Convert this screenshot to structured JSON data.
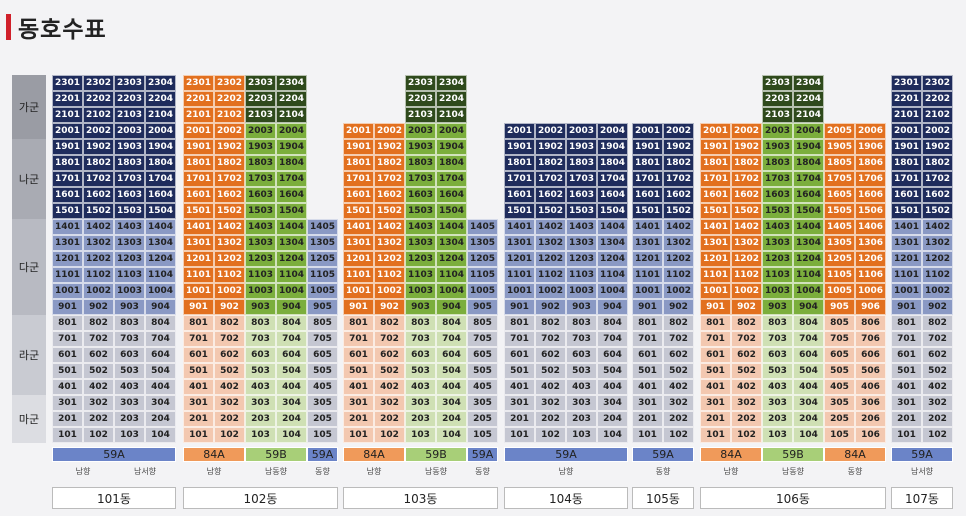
{
  "page_title": "동호수표",
  "groups": [
    "가군",
    "나군",
    "다군",
    "라군",
    "마군"
  ],
  "colors": {
    "navy": "#1f2c5c",
    "dark_green": "#2f4a1c",
    "orange": "#e2701f",
    "green": "#7bae3c",
    "blue_gray": "#8a99c4",
    "light_gray": "#c5c7d2",
    "peach": "#f3c8b0",
    "pale_green": "#cfe0b4",
    "blue_label": "#6b84c8",
    "orange_label": "#f09a5a",
    "green_label": "#a8cf78"
  },
  "buildings": [
    {
      "name": "101동",
      "types": [
        {
          "label": "59A",
          "cols": 4,
          "color": "#6b84c8"
        }
      ],
      "directions": [
        {
          "label": "남향",
          "cols": 2
        },
        {
          "label": "남서향",
          "cols": 2
        }
      ]
    },
    {
      "name": "102동",
      "types": [
        {
          "label": "84A",
          "cols": 2,
          "color": "#f09a5a"
        },
        {
          "label": "59B",
          "cols": 2,
          "color": "#a8cf78"
        },
        {
          "label": "59A",
          "cols": 1,
          "color": "#6b84c8"
        }
      ],
      "directions": [
        {
          "label": "남향",
          "cols": 2
        },
        {
          "label": "남동향",
          "cols": 2
        },
        {
          "label": "동향",
          "cols": 1
        }
      ]
    },
    {
      "name": "103동",
      "types": [
        {
          "label": "84A",
          "cols": 2,
          "color": "#f09a5a"
        },
        {
          "label": "59B",
          "cols": 2,
          "color": "#a8cf78"
        },
        {
          "label": "59A",
          "cols": 1,
          "color": "#6b84c8"
        }
      ],
      "directions": [
        {
          "label": "남향",
          "cols": 2
        },
        {
          "label": "남동향",
          "cols": 2
        },
        {
          "label": "동향",
          "cols": 1
        }
      ]
    },
    {
      "name": "104동",
      "types": [
        {
          "label": "59A",
          "cols": 4,
          "color": "#6b84c8"
        }
      ],
      "directions": [
        {
          "label": "남향",
          "cols": 4
        }
      ]
    },
    {
      "name": "105동",
      "types": [
        {
          "label": "59A",
          "cols": 2,
          "color": "#6b84c8"
        }
      ],
      "directions": [
        {
          "label": "동향",
          "cols": 2
        }
      ]
    },
    {
      "name": "106동",
      "types": [
        {
          "label": "84A",
          "cols": 2,
          "color": "#f09a5a"
        },
        {
          "label": "59B",
          "cols": 2,
          "color": "#a8cf78"
        },
        {
          "label": "84A",
          "cols": 2,
          "color": "#f09a5a"
        }
      ],
      "directions": [
        {
          "label": "남향",
          "cols": 2
        },
        {
          "label": "남동향",
          "cols": 2
        },
        {
          "label": "동향",
          "cols": 2
        }
      ]
    },
    {
      "name": "107동",
      "types": [
        {
          "label": "59A",
          "cols": 2,
          "color": "#6b84c8"
        }
      ],
      "directions": [
        {
          "label": "남서향",
          "cols": 2
        }
      ]
    }
  ]
}
